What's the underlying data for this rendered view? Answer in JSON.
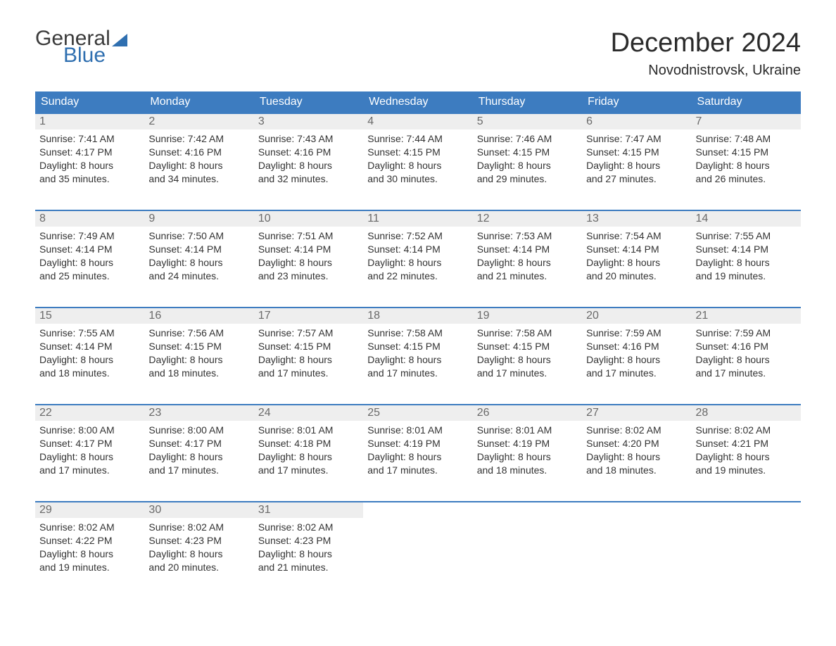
{
  "logo": {
    "word1": "General",
    "word2": "Blue"
  },
  "title": "December 2024",
  "location": "Novodnistrovsk, Ukraine",
  "colors": {
    "header_bg": "#3d7cc0",
    "header_text": "#ffffff",
    "daynum_bg": "#eeeeee",
    "daynum_text": "#6a6a6a",
    "body_text": "#333333",
    "logo_blue": "#2f6fb0",
    "week_border": "#3d7cc0"
  },
  "day_headers": [
    "Sunday",
    "Monday",
    "Tuesday",
    "Wednesday",
    "Thursday",
    "Friday",
    "Saturday"
  ],
  "weeks": [
    [
      {
        "n": "1",
        "sunrise": "Sunrise: 7:41 AM",
        "sunset": "Sunset: 4:17 PM",
        "d1": "Daylight: 8 hours",
        "d2": "and 35 minutes."
      },
      {
        "n": "2",
        "sunrise": "Sunrise: 7:42 AM",
        "sunset": "Sunset: 4:16 PM",
        "d1": "Daylight: 8 hours",
        "d2": "and 34 minutes."
      },
      {
        "n": "3",
        "sunrise": "Sunrise: 7:43 AM",
        "sunset": "Sunset: 4:16 PM",
        "d1": "Daylight: 8 hours",
        "d2": "and 32 minutes."
      },
      {
        "n": "4",
        "sunrise": "Sunrise: 7:44 AM",
        "sunset": "Sunset: 4:15 PM",
        "d1": "Daylight: 8 hours",
        "d2": "and 30 minutes."
      },
      {
        "n": "5",
        "sunrise": "Sunrise: 7:46 AM",
        "sunset": "Sunset: 4:15 PM",
        "d1": "Daylight: 8 hours",
        "d2": "and 29 minutes."
      },
      {
        "n": "6",
        "sunrise": "Sunrise: 7:47 AM",
        "sunset": "Sunset: 4:15 PM",
        "d1": "Daylight: 8 hours",
        "d2": "and 27 minutes."
      },
      {
        "n": "7",
        "sunrise": "Sunrise: 7:48 AM",
        "sunset": "Sunset: 4:15 PM",
        "d1": "Daylight: 8 hours",
        "d2": "and 26 minutes."
      }
    ],
    [
      {
        "n": "8",
        "sunrise": "Sunrise: 7:49 AM",
        "sunset": "Sunset: 4:14 PM",
        "d1": "Daylight: 8 hours",
        "d2": "and 25 minutes."
      },
      {
        "n": "9",
        "sunrise": "Sunrise: 7:50 AM",
        "sunset": "Sunset: 4:14 PM",
        "d1": "Daylight: 8 hours",
        "d2": "and 24 minutes."
      },
      {
        "n": "10",
        "sunrise": "Sunrise: 7:51 AM",
        "sunset": "Sunset: 4:14 PM",
        "d1": "Daylight: 8 hours",
        "d2": "and 23 minutes."
      },
      {
        "n": "11",
        "sunrise": "Sunrise: 7:52 AM",
        "sunset": "Sunset: 4:14 PM",
        "d1": "Daylight: 8 hours",
        "d2": "and 22 minutes."
      },
      {
        "n": "12",
        "sunrise": "Sunrise: 7:53 AM",
        "sunset": "Sunset: 4:14 PM",
        "d1": "Daylight: 8 hours",
        "d2": "and 21 minutes."
      },
      {
        "n": "13",
        "sunrise": "Sunrise: 7:54 AM",
        "sunset": "Sunset: 4:14 PM",
        "d1": "Daylight: 8 hours",
        "d2": "and 20 minutes."
      },
      {
        "n": "14",
        "sunrise": "Sunrise: 7:55 AM",
        "sunset": "Sunset: 4:14 PM",
        "d1": "Daylight: 8 hours",
        "d2": "and 19 minutes."
      }
    ],
    [
      {
        "n": "15",
        "sunrise": "Sunrise: 7:55 AM",
        "sunset": "Sunset: 4:14 PM",
        "d1": "Daylight: 8 hours",
        "d2": "and 18 minutes."
      },
      {
        "n": "16",
        "sunrise": "Sunrise: 7:56 AM",
        "sunset": "Sunset: 4:15 PM",
        "d1": "Daylight: 8 hours",
        "d2": "and 18 minutes."
      },
      {
        "n": "17",
        "sunrise": "Sunrise: 7:57 AM",
        "sunset": "Sunset: 4:15 PM",
        "d1": "Daylight: 8 hours",
        "d2": "and 17 minutes."
      },
      {
        "n": "18",
        "sunrise": "Sunrise: 7:58 AM",
        "sunset": "Sunset: 4:15 PM",
        "d1": "Daylight: 8 hours",
        "d2": "and 17 minutes."
      },
      {
        "n": "19",
        "sunrise": "Sunrise: 7:58 AM",
        "sunset": "Sunset: 4:15 PM",
        "d1": "Daylight: 8 hours",
        "d2": "and 17 minutes."
      },
      {
        "n": "20",
        "sunrise": "Sunrise: 7:59 AM",
        "sunset": "Sunset: 4:16 PM",
        "d1": "Daylight: 8 hours",
        "d2": "and 17 minutes."
      },
      {
        "n": "21",
        "sunrise": "Sunrise: 7:59 AM",
        "sunset": "Sunset: 4:16 PM",
        "d1": "Daylight: 8 hours",
        "d2": "and 17 minutes."
      }
    ],
    [
      {
        "n": "22",
        "sunrise": "Sunrise: 8:00 AM",
        "sunset": "Sunset: 4:17 PM",
        "d1": "Daylight: 8 hours",
        "d2": "and 17 minutes."
      },
      {
        "n": "23",
        "sunrise": "Sunrise: 8:00 AM",
        "sunset": "Sunset: 4:17 PM",
        "d1": "Daylight: 8 hours",
        "d2": "and 17 minutes."
      },
      {
        "n": "24",
        "sunrise": "Sunrise: 8:01 AM",
        "sunset": "Sunset: 4:18 PM",
        "d1": "Daylight: 8 hours",
        "d2": "and 17 minutes."
      },
      {
        "n": "25",
        "sunrise": "Sunrise: 8:01 AM",
        "sunset": "Sunset: 4:19 PM",
        "d1": "Daylight: 8 hours",
        "d2": "and 17 minutes."
      },
      {
        "n": "26",
        "sunrise": "Sunrise: 8:01 AM",
        "sunset": "Sunset: 4:19 PM",
        "d1": "Daylight: 8 hours",
        "d2": "and 18 minutes."
      },
      {
        "n": "27",
        "sunrise": "Sunrise: 8:02 AM",
        "sunset": "Sunset: 4:20 PM",
        "d1": "Daylight: 8 hours",
        "d2": "and 18 minutes."
      },
      {
        "n": "28",
        "sunrise": "Sunrise: 8:02 AM",
        "sunset": "Sunset: 4:21 PM",
        "d1": "Daylight: 8 hours",
        "d2": "and 19 minutes."
      }
    ],
    [
      {
        "n": "29",
        "sunrise": "Sunrise: 8:02 AM",
        "sunset": "Sunset: 4:22 PM",
        "d1": "Daylight: 8 hours",
        "d2": "and 19 minutes."
      },
      {
        "n": "30",
        "sunrise": "Sunrise: 8:02 AM",
        "sunset": "Sunset: 4:23 PM",
        "d1": "Daylight: 8 hours",
        "d2": "and 20 minutes."
      },
      {
        "n": "31",
        "sunrise": "Sunrise: 8:02 AM",
        "sunset": "Sunset: 4:23 PM",
        "d1": "Daylight: 8 hours",
        "d2": "and 21 minutes."
      },
      {
        "empty": true
      },
      {
        "empty": true
      },
      {
        "empty": true
      },
      {
        "empty": true
      }
    ]
  ]
}
